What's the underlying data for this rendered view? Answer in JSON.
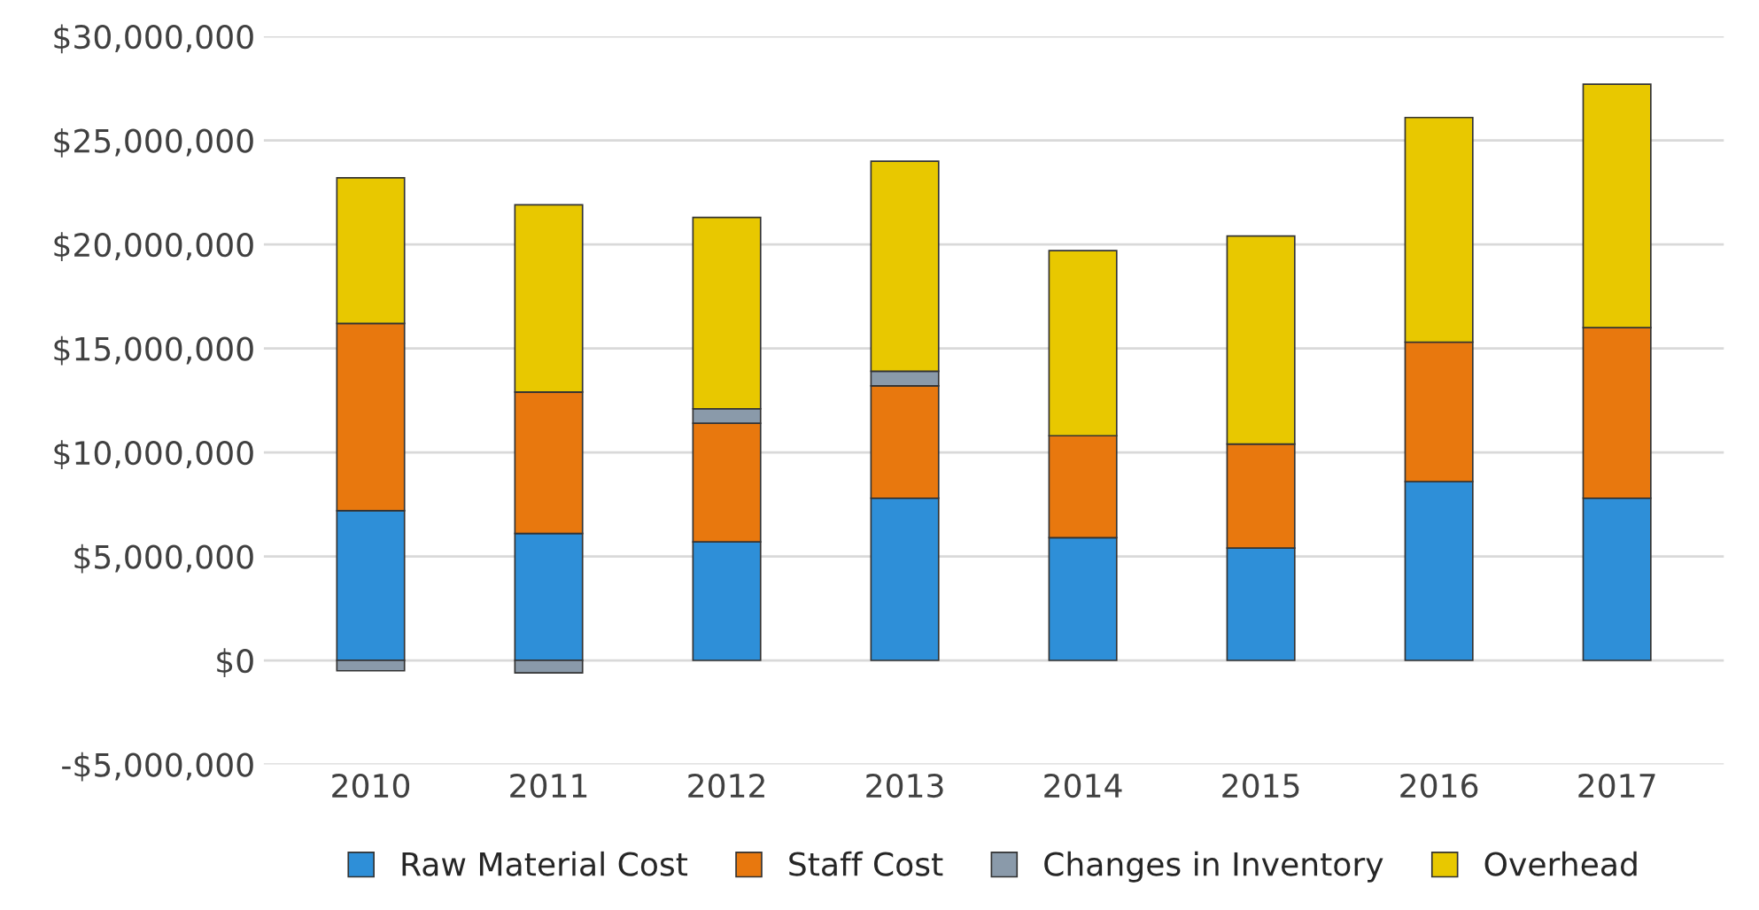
{
  "chart_data": {
    "type": "bar",
    "stacked": true,
    "categories": [
      "2010",
      "2011",
      "2012",
      "2013",
      "2014",
      "2015",
      "2016",
      "2017"
    ],
    "series": [
      {
        "name": "Raw Material Cost",
        "color": "#2e8fd8",
        "values": [
          7200000,
          6100000,
          5700000,
          7800000,
          5900000,
          5400000,
          8600000,
          7800000
        ]
      },
      {
        "name": "Staff Cost",
        "color": "#e8780e",
        "values": [
          9000000,
          6800000,
          5700000,
          5400000,
          4900000,
          5000000,
          6700000,
          8200000
        ]
      },
      {
        "name": "Changes in Inventory",
        "color": "#8a9aaa",
        "values": [
          -500000,
          -600000,
          700000,
          700000,
          null,
          null,
          null,
          null
        ]
      },
      {
        "name": "Overhead",
        "color": "#e8c800",
        "values": [
          7000000,
          9000000,
          9200000,
          10100000,
          8900000,
          10000000,
          10800000,
          11700000
        ]
      }
    ],
    "ylim": [
      -5000000,
      30000000
    ],
    "yticks": [
      {
        "value": -5000000,
        "label": "-$5,000,000"
      },
      {
        "value": 0,
        "label": "$0"
      },
      {
        "value": 5000000,
        "label": "$5,000,000"
      },
      {
        "value": 10000000,
        "label": "$10,000,000"
      },
      {
        "value": 15000000,
        "label": "$15,000,000"
      },
      {
        "value": 20000000,
        "label": "$20,000,000"
      },
      {
        "value": 25000000,
        "label": "$25,000,000"
      },
      {
        "value": 30000000,
        "label": "$30,000,000"
      }
    ],
    "grid": "y",
    "legend": "bottom"
  }
}
